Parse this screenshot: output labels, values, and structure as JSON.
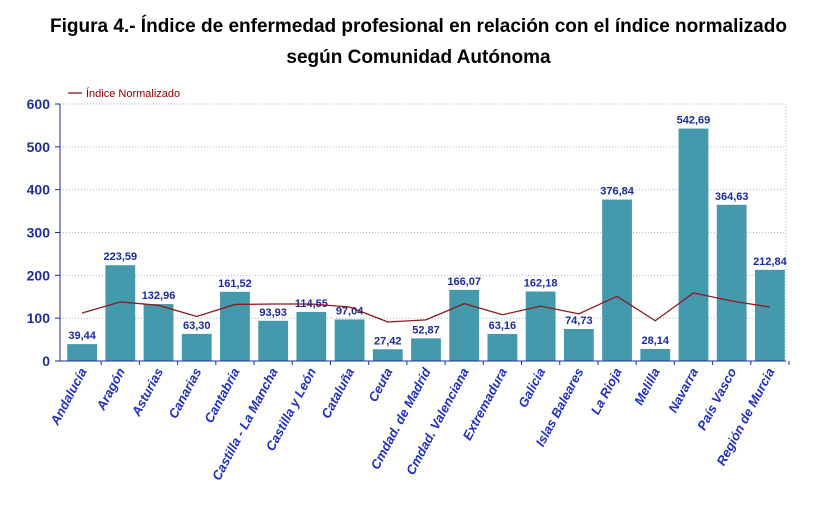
{
  "title_line1": "Figura 4.-  Índice de enfermedad profesional en relación con el índice normalizado",
  "title_line2": "según Comunidad Autónoma",
  "colors": {
    "bar": "#4599ad",
    "line": "#8b1a1a",
    "axis_text": "#1f2f9a",
    "grid": "#9aa6c8"
  },
  "chart_data": {
    "type": "bar",
    "title": "Figura 4.-  Índice de enfermedad profesional en relación con el índice normalizado según Comunidad Autónoma",
    "xlabel": "",
    "ylabel": "",
    "ylim": [
      0,
      600
    ],
    "yticks": [
      "0",
      "100",
      "200",
      "300",
      "400",
      "500",
      "600"
    ],
    "grid": true,
    "legend_position": "top-left",
    "categories": [
      "Andalucía",
      "Aragón",
      "Asturias",
      "Canarias",
      "Cantabria",
      "Castilla - La Mancha",
      "Castilla y León",
      "Cataluña",
      "Ceuta",
      "Cmdad. de Madrid",
      "Cmdad. Valenciana",
      "Extremadura",
      "Galicia",
      "Islas Baleares",
      "La Rioja",
      "Melilla",
      "Navarra",
      "País Vasco",
      "Región de Murcia"
    ],
    "values": [
      39.44,
      223.59,
      132.96,
      63.3,
      161.52,
      93.93,
      114.55,
      97.04,
      27.42,
      52.87,
      166.07,
      63.16,
      162.18,
      74.73,
      376.84,
      28.14,
      542.69,
      364.63,
      212.84
    ],
    "value_labels": [
      "39,44",
      "223,59",
      "132,96",
      "63,30",
      "161,52",
      "93,93",
      "114,55",
      "97,04",
      "27,42",
      "52,87",
      "166,07",
      "63,16",
      "162,18",
      "74,73",
      "376,84",
      "28,14",
      "542,69",
      "364,63",
      "212,84"
    ],
    "series": [
      {
        "name": "Índice Normalizado",
        "type": "line",
        "values": [
          112,
          138,
          130,
          104,
          132,
          133,
          133,
          126,
          91,
          96,
          134,
          108,
          128,
          110,
          151,
          94,
          159,
          140,
          126
        ]
      }
    ]
  }
}
